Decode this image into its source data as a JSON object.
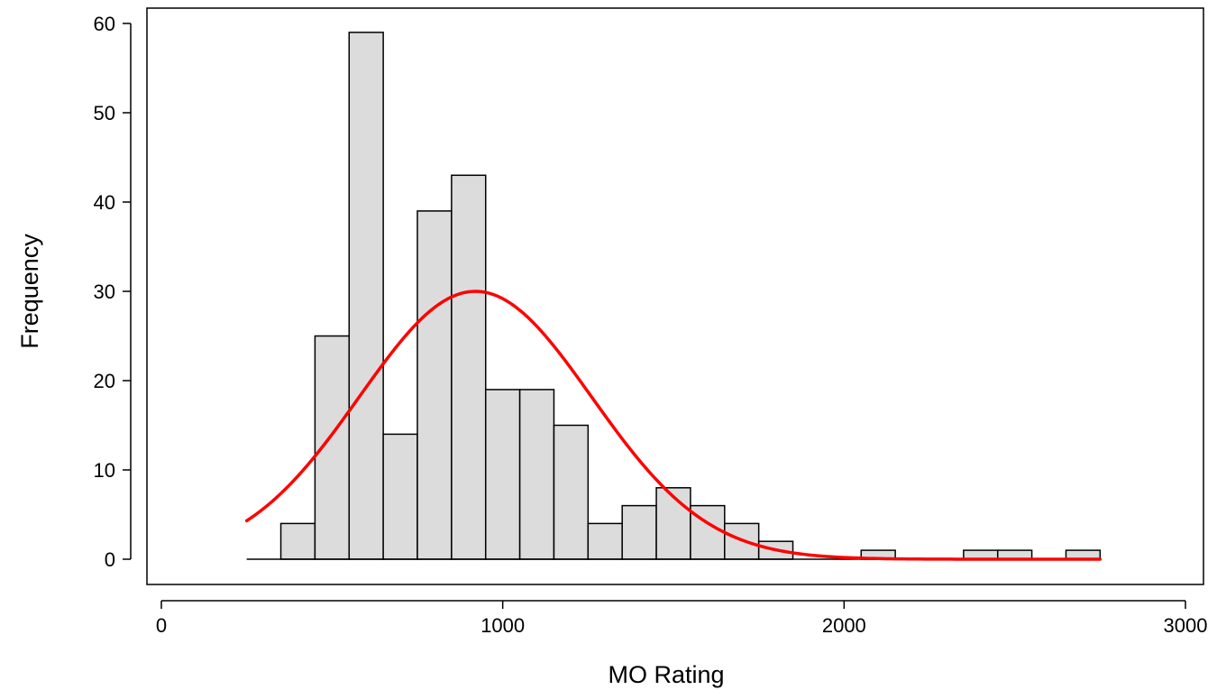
{
  "chart_data": {
    "type": "bar",
    "title": "",
    "xlabel": "MO Rating",
    "ylabel": "Frequency",
    "xlim": [
      0,
      3000
    ],
    "ylim": [
      0,
      60
    ],
    "x_ticks": [
      0,
      1000,
      2000,
      3000
    ],
    "y_ticks": [
      0,
      10,
      20,
      30,
      40,
      50,
      60
    ],
    "x_tick_labels": [
      "0",
      "1000",
      "2000",
      "3000"
    ],
    "y_tick_labels": [
      "0",
      "10",
      "20",
      "30",
      "40",
      "50",
      "60"
    ],
    "grid": false,
    "bin_width": 100,
    "bars": [
      {
        "x": 400,
        "value": 4
      },
      {
        "x": 500,
        "value": 25
      },
      {
        "x": 600,
        "value": 59
      },
      {
        "x": 700,
        "value": 14
      },
      {
        "x": 800,
        "value": 39
      },
      {
        "x": 900,
        "value": 43
      },
      {
        "x": 1000,
        "value": 19
      },
      {
        "x": 1100,
        "value": 19
      },
      {
        "x": 1200,
        "value": 15
      },
      {
        "x": 1300,
        "value": 4
      },
      {
        "x": 1400,
        "value": 6
      },
      {
        "x": 1500,
        "value": 8
      },
      {
        "x": 1600,
        "value": 6
      },
      {
        "x": 1700,
        "value": 4
      },
      {
        "x": 1800,
        "value": 2
      },
      {
        "x": 1900,
        "value": 0
      },
      {
        "x": 2000,
        "value": 0
      },
      {
        "x": 2100,
        "value": 1
      },
      {
        "x": 2200,
        "value": 0
      },
      {
        "x": 2300,
        "value": 0
      },
      {
        "x": 2400,
        "value": 1
      },
      {
        "x": 2500,
        "value": 1
      },
      {
        "x": 2600,
        "value": 0
      },
      {
        "x": 2700,
        "value": 1
      }
    ],
    "bar_color": "#dcdcdc",
    "bar_edge_color": "#000000",
    "fit_curve": {
      "type": "normal",
      "mean": 920,
      "peak": 30,
      "sd": 340,
      "x_range": [
        250,
        2750
      ],
      "color": "#ff0000"
    }
  }
}
